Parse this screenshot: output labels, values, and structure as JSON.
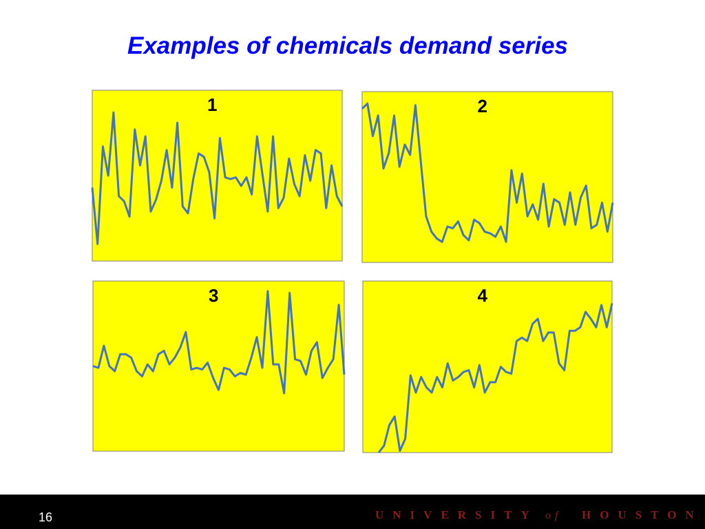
{
  "title": "Examples of chemicals demand series",
  "chart_data": [
    {
      "type": "line",
      "title": "1",
      "color": "#4472c4",
      "background": "#ffff00",
      "ylim": [
        0,
        100
      ],
      "values": [
        43,
        10,
        67,
        50,
        87,
        38,
        35,
        26,
        77,
        56,
        73,
        29,
        36,
        47,
        65,
        43,
        81,
        32,
        28,
        48,
        63,
        61,
        52,
        25,
        72,
        49,
        48,
        49,
        44,
        49,
        39,
        73,
        51,
        29,
        73,
        31,
        37,
        60,
        45,
        38,
        62,
        47,
        65,
        63,
        31,
        56,
        38,
        32
      ]
    },
    {
      "type": "line",
      "title": "2",
      "color": "#4472c4",
      "background": "#ffff00",
      "ylim": [
        0,
        100
      ],
      "values": [
        90,
        93,
        74,
        86,
        55,
        64,
        86,
        56,
        69,
        63,
        92,
        59,
        27,
        18,
        14,
        12,
        21,
        20,
        24,
        16,
        13,
        25,
        23,
        18,
        17,
        15,
        21,
        12,
        54,
        35,
        52,
        27,
        34,
        25,
        46,
        21,
        37,
        35,
        22,
        41,
        22,
        38,
        45,
        20,
        22,
        35,
        18,
        35
      ]
    },
    {
      "type": "line",
      "title": "3",
      "color": "#4472c4",
      "background": "#ffff00",
      "ylim": [
        0,
        100
      ],
      "values": [
        50,
        49,
        62,
        50,
        47,
        57,
        57,
        55,
        47,
        44,
        51,
        47,
        57,
        59,
        51,
        55,
        61,
        70,
        48,
        49,
        48,
        52,
        43,
        36,
        49,
        48,
        44,
        46,
        45,
        55,
        67,
        49,
        94,
        51,
        51,
        34,
        93,
        54,
        53,
        45,
        59,
        64,
        43,
        49,
        54,
        86,
        45
      ]
    },
    {
      "type": "line",
      "title": "4",
      "color": "#4472c4",
      "background": "#ffff00",
      "ylim": [
        0,
        100
      ],
      "values": [
        null,
        null,
        null,
        0,
        4,
        16,
        21,
        1,
        8,
        45,
        35,
        44,
        38,
        35,
        44,
        38,
        52,
        42,
        44,
        47,
        48,
        38,
        51,
        35,
        41,
        41,
        50,
        47,
        46,
        65,
        67,
        65,
        75,
        78,
        65,
        70,
        70,
        52,
        48,
        71,
        71,
        73,
        82,
        78,
        73,
        86,
        73,
        87
      ]
    }
  ],
  "footer": {
    "page": "16",
    "university": "UNIVERSITY",
    "of": "of",
    "institution": "HOUSTON"
  }
}
